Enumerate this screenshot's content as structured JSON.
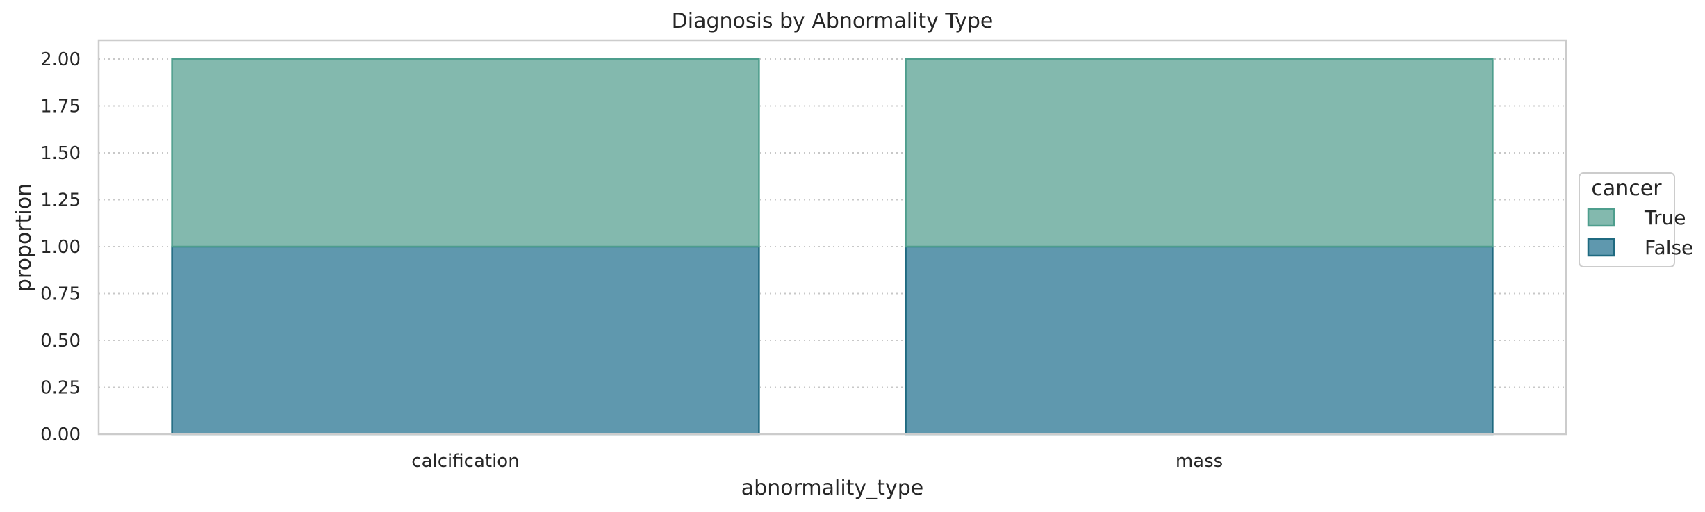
{
  "chart_data": {
    "type": "bar",
    "stacked": true,
    "title": "Diagnosis by Abnormality Type",
    "xlabel": "abnormality_type",
    "ylabel": "proportion",
    "categories": [
      "calcification",
      "mass"
    ],
    "series": [
      {
        "name": "False",
        "values": [
          1.0,
          1.0
        ],
        "fill": "#5f98ae",
        "stroke": "#1f6a80"
      },
      {
        "name": "True",
        "values": [
          1.0,
          1.0
        ],
        "fill": "#83b9ae",
        "stroke": "#4e9e8d"
      }
    ],
    "ylim": [
      0,
      2.0
    ],
    "yticks": [
      "0.00",
      "0.25",
      "0.50",
      "0.75",
      "1.00",
      "1.25",
      "1.50",
      "1.75",
      "2.00"
    ],
    "grid": "horizontal dotted",
    "legend": {
      "title": "cancer",
      "placement": "right-outside",
      "entries": [
        "True",
        "False"
      ]
    }
  }
}
